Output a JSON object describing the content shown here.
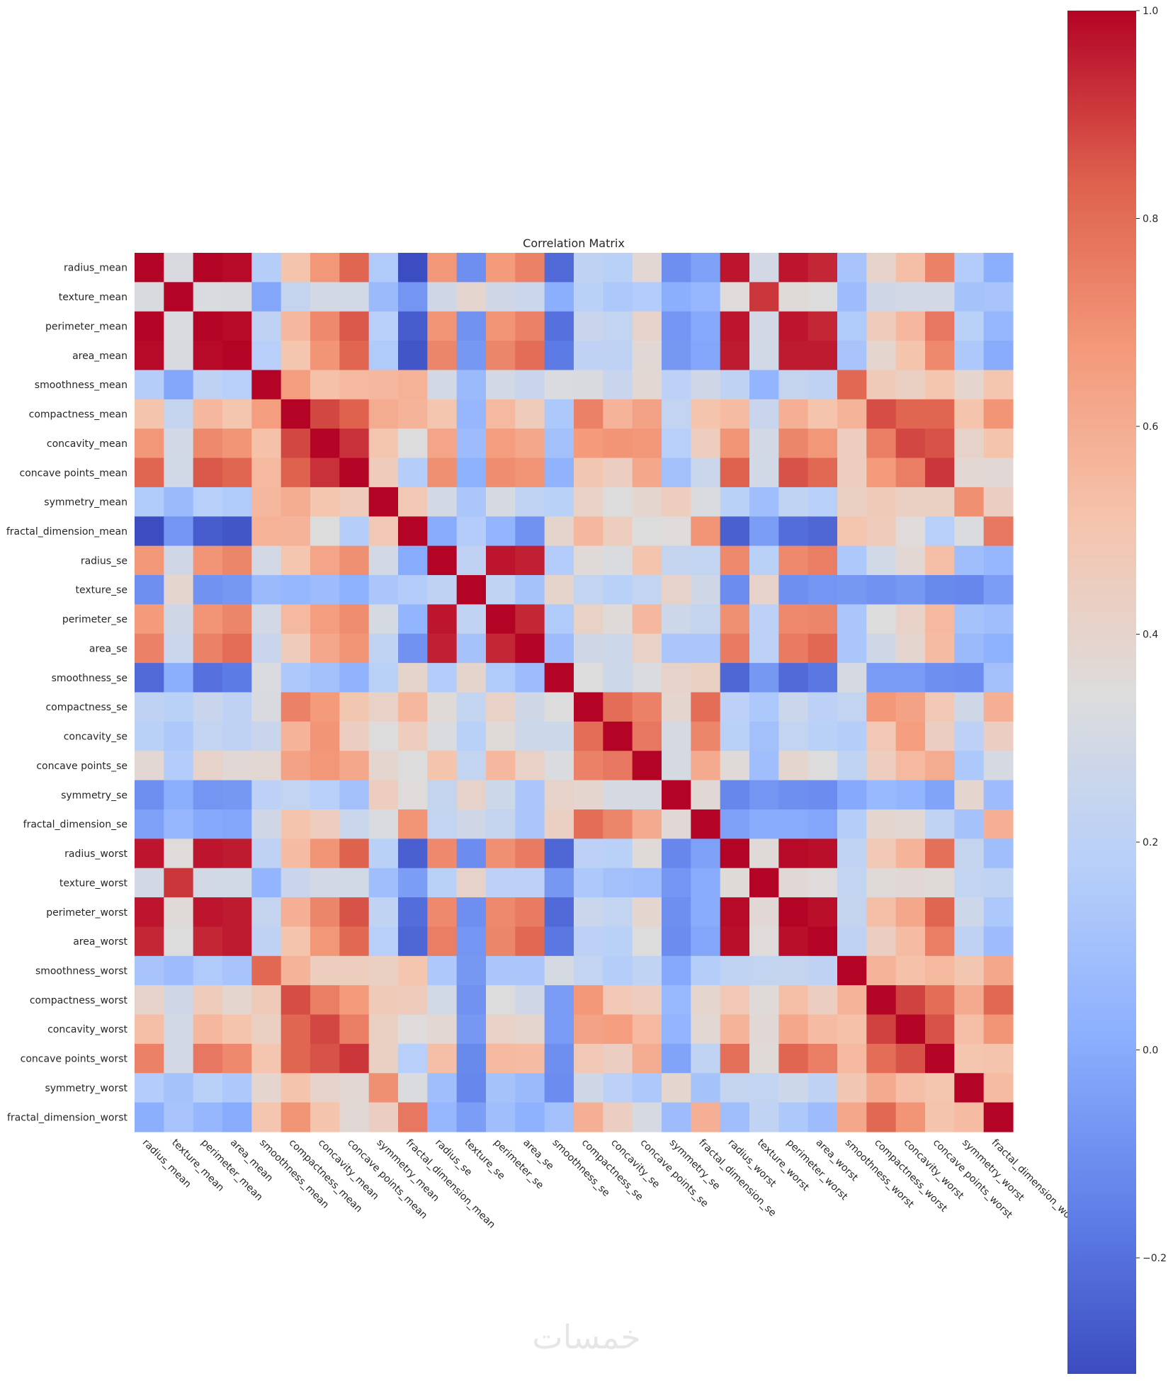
{
  "chart_data": {
    "type": "heatmap",
    "title": "Correlation Matrix",
    "xlabel": "",
    "ylabel": "",
    "colormap": "coolwarm",
    "vmin": -0.3117,
    "vmax": 1.0,
    "colorbar_ticks": [
      1.0,
      0.8,
      0.6,
      0.4,
      0.2,
      0.0,
      -0.2
    ],
    "colorbar_tick_labels": [
      "1.0",
      "0.8",
      "0.6",
      "0.4",
      "0.2",
      "0.0",
      "−0.2"
    ],
    "colorbar_position": "right",
    "grid": false,
    "labels": [
      "radius_mean",
      "texture_mean",
      "perimeter_mean",
      "area_mean",
      "smoothness_mean",
      "compactness_mean",
      "concavity_mean",
      "concave points_mean",
      "symmetry_mean",
      "fractal_dimension_mean",
      "radius_se",
      "texture_se",
      "perimeter_se",
      "area_se",
      "smoothness_se",
      "compactness_se",
      "concavity_se",
      "concave points_se",
      "symmetry_se",
      "fractal_dimension_se",
      "radius_worst",
      "texture_worst",
      "perimeter_worst",
      "area_worst",
      "smoothness_worst",
      "compactness_worst",
      "concavity_worst",
      "concave points_worst",
      "symmetry_worst",
      "fractal_dimension_worst"
    ],
    "matrix": [
      [
        1.0,
        0.32,
        1.0,
        0.99,
        0.17,
        0.51,
        0.68,
        0.82,
        0.15,
        -0.31,
        0.68,
        -0.1,
        0.67,
        0.74,
        -0.22,
        0.21,
        0.19,
        0.38,
        -0.1,
        -0.04,
        0.97,
        0.3,
        0.97,
        0.94,
        0.12,
        0.41,
        0.53,
        0.74,
        0.16,
        0.01
      ],
      [
        0.32,
        1.0,
        0.33,
        0.32,
        -0.02,
        0.24,
        0.3,
        0.29,
        0.07,
        -0.08,
        0.28,
        0.39,
        0.28,
        0.26,
        0.01,
        0.19,
        0.14,
        0.16,
        0.01,
        0.05,
        0.35,
        0.91,
        0.36,
        0.34,
        0.08,
        0.28,
        0.3,
        0.3,
        0.11,
        0.12
      ],
      [
        1.0,
        0.33,
        1.0,
        0.99,
        0.21,
        0.56,
        0.72,
        0.85,
        0.18,
        -0.26,
        0.69,
        -0.09,
        0.69,
        0.74,
        -0.2,
        0.25,
        0.23,
        0.41,
        -0.08,
        -0.01,
        0.97,
        0.3,
        0.97,
        0.94,
        0.15,
        0.46,
        0.56,
        0.77,
        0.19,
        0.05
      ],
      [
        0.99,
        0.32,
        0.99,
        1.0,
        0.18,
        0.5,
        0.69,
        0.82,
        0.15,
        -0.28,
        0.73,
        -0.07,
        0.73,
        0.8,
        -0.17,
        0.21,
        0.21,
        0.37,
        -0.07,
        -0.02,
        0.96,
        0.29,
        0.96,
        0.96,
        0.12,
        0.39,
        0.51,
        0.72,
        0.14,
        0.0
      ],
      [
        0.17,
        -0.02,
        0.21,
        0.18,
        1.0,
        0.66,
        0.52,
        0.55,
        0.56,
        0.58,
        0.3,
        0.07,
        0.3,
        0.25,
        0.33,
        0.32,
        0.25,
        0.38,
        0.2,
        0.28,
        0.21,
        0.04,
        0.24,
        0.21,
        0.81,
        0.47,
        0.43,
        0.5,
        0.39,
        0.5
      ],
      [
        0.51,
        0.24,
        0.56,
        0.5,
        0.66,
        1.0,
        0.88,
        0.83,
        0.6,
        0.57,
        0.5,
        0.05,
        0.55,
        0.46,
        0.14,
        0.74,
        0.57,
        0.64,
        0.23,
        0.51,
        0.54,
        0.25,
        0.59,
        0.51,
        0.57,
        0.87,
        0.82,
        0.82,
        0.51,
        0.69
      ],
      [
        0.68,
        0.3,
        0.72,
        0.69,
        0.52,
        0.88,
        1.0,
        0.92,
        0.5,
        0.34,
        0.63,
        0.08,
        0.66,
        0.62,
        0.1,
        0.67,
        0.69,
        0.68,
        0.18,
        0.45,
        0.69,
        0.3,
        0.73,
        0.68,
        0.45,
        0.75,
        0.88,
        0.86,
        0.41,
        0.51
      ],
      [
        0.82,
        0.29,
        0.85,
        0.82,
        0.55,
        0.83,
        0.92,
        1.0,
        0.46,
        0.17,
        0.7,
        0.02,
        0.71,
        0.69,
        0.03,
        0.49,
        0.44,
        0.62,
        0.1,
        0.26,
        0.83,
        0.29,
        0.86,
        0.81,
        0.45,
        0.67,
        0.75,
        0.91,
        0.38,
        0.37
      ],
      [
        0.15,
        0.07,
        0.18,
        0.15,
        0.56,
        0.6,
        0.5,
        0.46,
        1.0,
        0.48,
        0.3,
        0.13,
        0.31,
        0.22,
        0.19,
        0.42,
        0.34,
        0.39,
        0.45,
        0.33,
        0.19,
        0.09,
        0.22,
        0.18,
        0.43,
        0.47,
        0.43,
        0.43,
        0.7,
        0.44
      ],
      [
        -0.31,
        -0.08,
        -0.26,
        -0.28,
        0.58,
        0.57,
        0.34,
        0.17,
        0.48,
        1.0,
        0.0,
        0.16,
        0.04,
        -0.09,
        0.4,
        0.56,
        0.45,
        0.34,
        0.35,
        0.69,
        -0.25,
        -0.05,
        -0.21,
        -0.23,
        0.5,
        0.46,
        0.35,
        0.18,
        0.33,
        0.77
      ],
      [
        0.68,
        0.28,
        0.69,
        0.73,
        0.3,
        0.5,
        0.63,
        0.7,
        0.3,
        0.0,
        1.0,
        0.21,
        0.97,
        0.95,
        0.16,
        0.36,
        0.33,
        0.51,
        0.24,
        0.23,
        0.72,
        0.19,
        0.72,
        0.75,
        0.14,
        0.29,
        0.38,
        0.53,
        0.09,
        0.05
      ],
      [
        -0.1,
        0.39,
        -0.09,
        -0.07,
        0.07,
        0.05,
        0.08,
        0.02,
        0.13,
        0.16,
        0.21,
        1.0,
        0.22,
        0.11,
        0.4,
        0.23,
        0.19,
        0.23,
        0.41,
        0.28,
        -0.11,
        0.41,
        -0.1,
        -0.08,
        -0.07,
        -0.09,
        -0.07,
        -0.12,
        -0.13,
        -0.05
      ],
      [
        0.67,
        0.28,
        0.69,
        0.73,
        0.3,
        0.55,
        0.66,
        0.71,
        0.31,
        0.04,
        0.97,
        0.22,
        1.0,
        0.94,
        0.15,
        0.42,
        0.36,
        0.56,
        0.27,
        0.24,
        0.7,
        0.2,
        0.72,
        0.73,
        0.13,
        0.34,
        0.42,
        0.55,
        0.11,
        0.09
      ],
      [
        0.74,
        0.26,
        0.74,
        0.8,
        0.25,
        0.46,
        0.62,
        0.69,
        0.22,
        -0.09,
        0.95,
        0.11,
        0.94,
        1.0,
        0.08,
        0.28,
        0.27,
        0.42,
        0.13,
        0.13,
        0.76,
        0.2,
        0.76,
        0.81,
        0.13,
        0.28,
        0.39,
        0.54,
        0.07,
        0.02
      ],
      [
        -0.22,
        0.01,
        -0.2,
        -0.17,
        0.33,
        0.14,
        0.1,
        0.03,
        0.19,
        0.4,
        0.16,
        0.4,
        0.15,
        0.08,
        1.0,
        0.34,
        0.27,
        0.33,
        0.41,
        0.43,
        -0.23,
        -0.07,
        -0.22,
        -0.18,
        0.31,
        -0.06,
        -0.06,
        -0.1,
        -0.11,
        0.1
      ],
      [
        0.21,
        0.19,
        0.25,
        0.21,
        0.32,
        0.74,
        0.67,
        0.49,
        0.42,
        0.56,
        0.36,
        0.23,
        0.42,
        0.28,
        0.34,
        1.0,
        0.8,
        0.74,
        0.39,
        0.8,
        0.2,
        0.14,
        0.26,
        0.2,
        0.23,
        0.68,
        0.64,
        0.48,
        0.28,
        0.59
      ],
      [
        0.19,
        0.14,
        0.23,
        0.21,
        0.25,
        0.57,
        0.69,
        0.44,
        0.34,
        0.45,
        0.33,
        0.19,
        0.36,
        0.27,
        0.27,
        0.8,
        1.0,
        0.77,
        0.31,
        0.73,
        0.19,
        0.1,
        0.23,
        0.19,
        0.17,
        0.48,
        0.66,
        0.44,
        0.2,
        0.44
      ],
      [
        0.38,
        0.16,
        0.41,
        0.37,
        0.38,
        0.64,
        0.68,
        0.62,
        0.39,
        0.34,
        0.51,
        0.23,
        0.56,
        0.42,
        0.33,
        0.74,
        0.77,
        1.0,
        0.31,
        0.61,
        0.36,
        0.09,
        0.39,
        0.34,
        0.22,
        0.45,
        0.55,
        0.6,
        0.14,
        0.31
      ],
      [
        -0.1,
        0.01,
        -0.08,
        -0.07,
        0.2,
        0.23,
        0.18,
        0.1,
        0.45,
        0.35,
        0.24,
        0.41,
        0.27,
        0.13,
        0.41,
        0.39,
        0.31,
        0.31,
        1.0,
        0.37,
        -0.13,
        -0.08,
        -0.1,
        -0.11,
        -0.01,
        0.06,
        0.04,
        -0.03,
        0.39,
        0.08
      ],
      [
        -0.04,
        0.05,
        -0.01,
        -0.02,
        0.28,
        0.51,
        0.45,
        0.26,
        0.33,
        0.69,
        0.23,
        0.28,
        0.24,
        0.13,
        0.43,
        0.8,
        0.73,
        0.61,
        0.37,
        1.0,
        -0.04,
        -0.0,
        -0.0,
        -0.02,
        0.17,
        0.39,
        0.38,
        0.22,
        0.11,
        0.59
      ],
      [
        0.97,
        0.35,
        0.97,
        0.96,
        0.21,
        0.54,
        0.69,
        0.83,
        0.19,
        -0.25,
        0.72,
        -0.11,
        0.7,
        0.76,
        -0.23,
        0.2,
        0.19,
        0.36,
        -0.13,
        -0.04,
        1.0,
        0.36,
        0.99,
        0.98,
        0.22,
        0.48,
        0.57,
        0.79,
        0.24,
        0.09
      ],
      [
        0.3,
        0.91,
        0.3,
        0.29,
        0.04,
        0.25,
        0.3,
        0.29,
        0.09,
        -0.05,
        0.19,
        0.41,
        0.2,
        0.2,
        -0.07,
        0.14,
        0.1,
        0.09,
        -0.08,
        -0.0,
        0.36,
        1.0,
        0.37,
        0.35,
        0.23,
        0.36,
        0.37,
        0.36,
        0.23,
        0.22
      ],
      [
        0.97,
        0.36,
        0.97,
        0.96,
        0.24,
        0.59,
        0.73,
        0.86,
        0.22,
        -0.21,
        0.72,
        -0.1,
        0.72,
        0.76,
        -0.22,
        0.26,
        0.23,
        0.39,
        -0.1,
        -0.0,
        0.99,
        0.37,
        1.0,
        0.98,
        0.24,
        0.53,
        0.62,
        0.82,
        0.27,
        0.14
      ],
      [
        0.94,
        0.34,
        0.94,
        0.96,
        0.21,
        0.51,
        0.68,
        0.81,
        0.18,
        -0.23,
        0.75,
        -0.08,
        0.73,
        0.81,
        -0.18,
        0.2,
        0.19,
        0.34,
        -0.11,
        -0.02,
        0.98,
        0.35,
        0.98,
        1.0,
        0.21,
        0.44,
        0.54,
        0.75,
        0.21,
        0.08
      ],
      [
        0.12,
        0.08,
        0.15,
        0.12,
        0.81,
        0.57,
        0.45,
        0.45,
        0.43,
        0.5,
        0.14,
        -0.07,
        0.13,
        0.13,
        0.31,
        0.23,
        0.17,
        0.22,
        -0.01,
        0.17,
        0.22,
        0.23,
        0.24,
        0.21,
        1.0,
        0.57,
        0.52,
        0.55,
        0.49,
        0.62
      ],
      [
        0.41,
        0.28,
        0.46,
        0.39,
        0.47,
        0.87,
        0.75,
        0.67,
        0.47,
        0.46,
        0.29,
        -0.09,
        0.34,
        0.28,
        -0.06,
        0.68,
        0.48,
        0.45,
        0.06,
        0.39,
        0.48,
        0.36,
        0.53,
        0.44,
        0.57,
        1.0,
        0.89,
        0.8,
        0.61,
        0.81
      ],
      [
        0.53,
        0.3,
        0.56,
        0.51,
        0.43,
        0.82,
        0.88,
        0.75,
        0.43,
        0.35,
        0.38,
        -0.07,
        0.42,
        0.39,
        -0.06,
        0.64,
        0.66,
        0.55,
        0.04,
        0.38,
        0.57,
        0.37,
        0.62,
        0.54,
        0.52,
        0.89,
        1.0,
        0.86,
        0.53,
        0.69
      ],
      [
        0.74,
        0.3,
        0.77,
        0.72,
        0.5,
        0.82,
        0.86,
        0.91,
        0.43,
        0.18,
        0.53,
        -0.12,
        0.55,
        0.54,
        -0.1,
        0.48,
        0.44,
        0.6,
        -0.03,
        0.22,
        0.79,
        0.36,
        0.82,
        0.75,
        0.55,
        0.8,
        0.86,
        1.0,
        0.5,
        0.51
      ],
      [
        0.16,
        0.11,
        0.19,
        0.14,
        0.39,
        0.51,
        0.41,
        0.38,
        0.7,
        0.33,
        0.09,
        -0.13,
        0.11,
        0.07,
        -0.11,
        0.28,
        0.2,
        0.14,
        0.39,
        0.11,
        0.24,
        0.23,
        0.27,
        0.21,
        0.49,
        0.61,
        0.53,
        0.5,
        1.0,
        0.54
      ],
      [
        0.01,
        0.12,
        0.05,
        0.0,
        0.5,
        0.69,
        0.51,
        0.37,
        0.44,
        0.77,
        0.05,
        -0.05,
        0.09,
        0.02,
        0.1,
        0.59,
        0.44,
        0.31,
        0.08,
        0.59,
        0.09,
        0.22,
        0.14,
        0.08,
        0.62,
        0.81,
        0.69,
        0.51,
        0.54,
        1.0
      ]
    ]
  },
  "watermark": {
    "text": "خمسات",
    "color": "#e6e6e6"
  }
}
